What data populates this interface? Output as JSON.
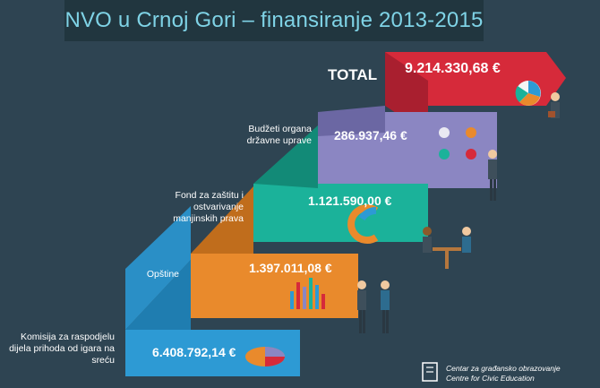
{
  "header": {
    "title": "NVO u Crnoj Gori – finansiranje 2013-2015"
  },
  "colors": {
    "background": "#2e4452",
    "red": "#d62a3a",
    "purple": "#8b86c2",
    "teal": "#1bb29a",
    "orange": "#e98a2c",
    "blue": "#2d9ad4"
  },
  "steps": [
    {
      "label": "TOTAL",
      "amount": "9.214.330,68 €"
    },
    {
      "label": "Budžeti organa državne uprave",
      "amount": "286.937,46 €"
    },
    {
      "label": "Fond za zaštitu i ostvarivanje manjinskih prava",
      "amount": "1.121.590,00 €"
    },
    {
      "label": "Opštine",
      "amount": "1.397.011,08 €"
    },
    {
      "label": "Komisija za raspodjelu dijela prihoda od igara na sreću",
      "amount": "6.408.792,14 €"
    }
  ],
  "footer": {
    "line1": "Centar za građansko obrazovanje",
    "line2": "Centre for Civic Education"
  }
}
